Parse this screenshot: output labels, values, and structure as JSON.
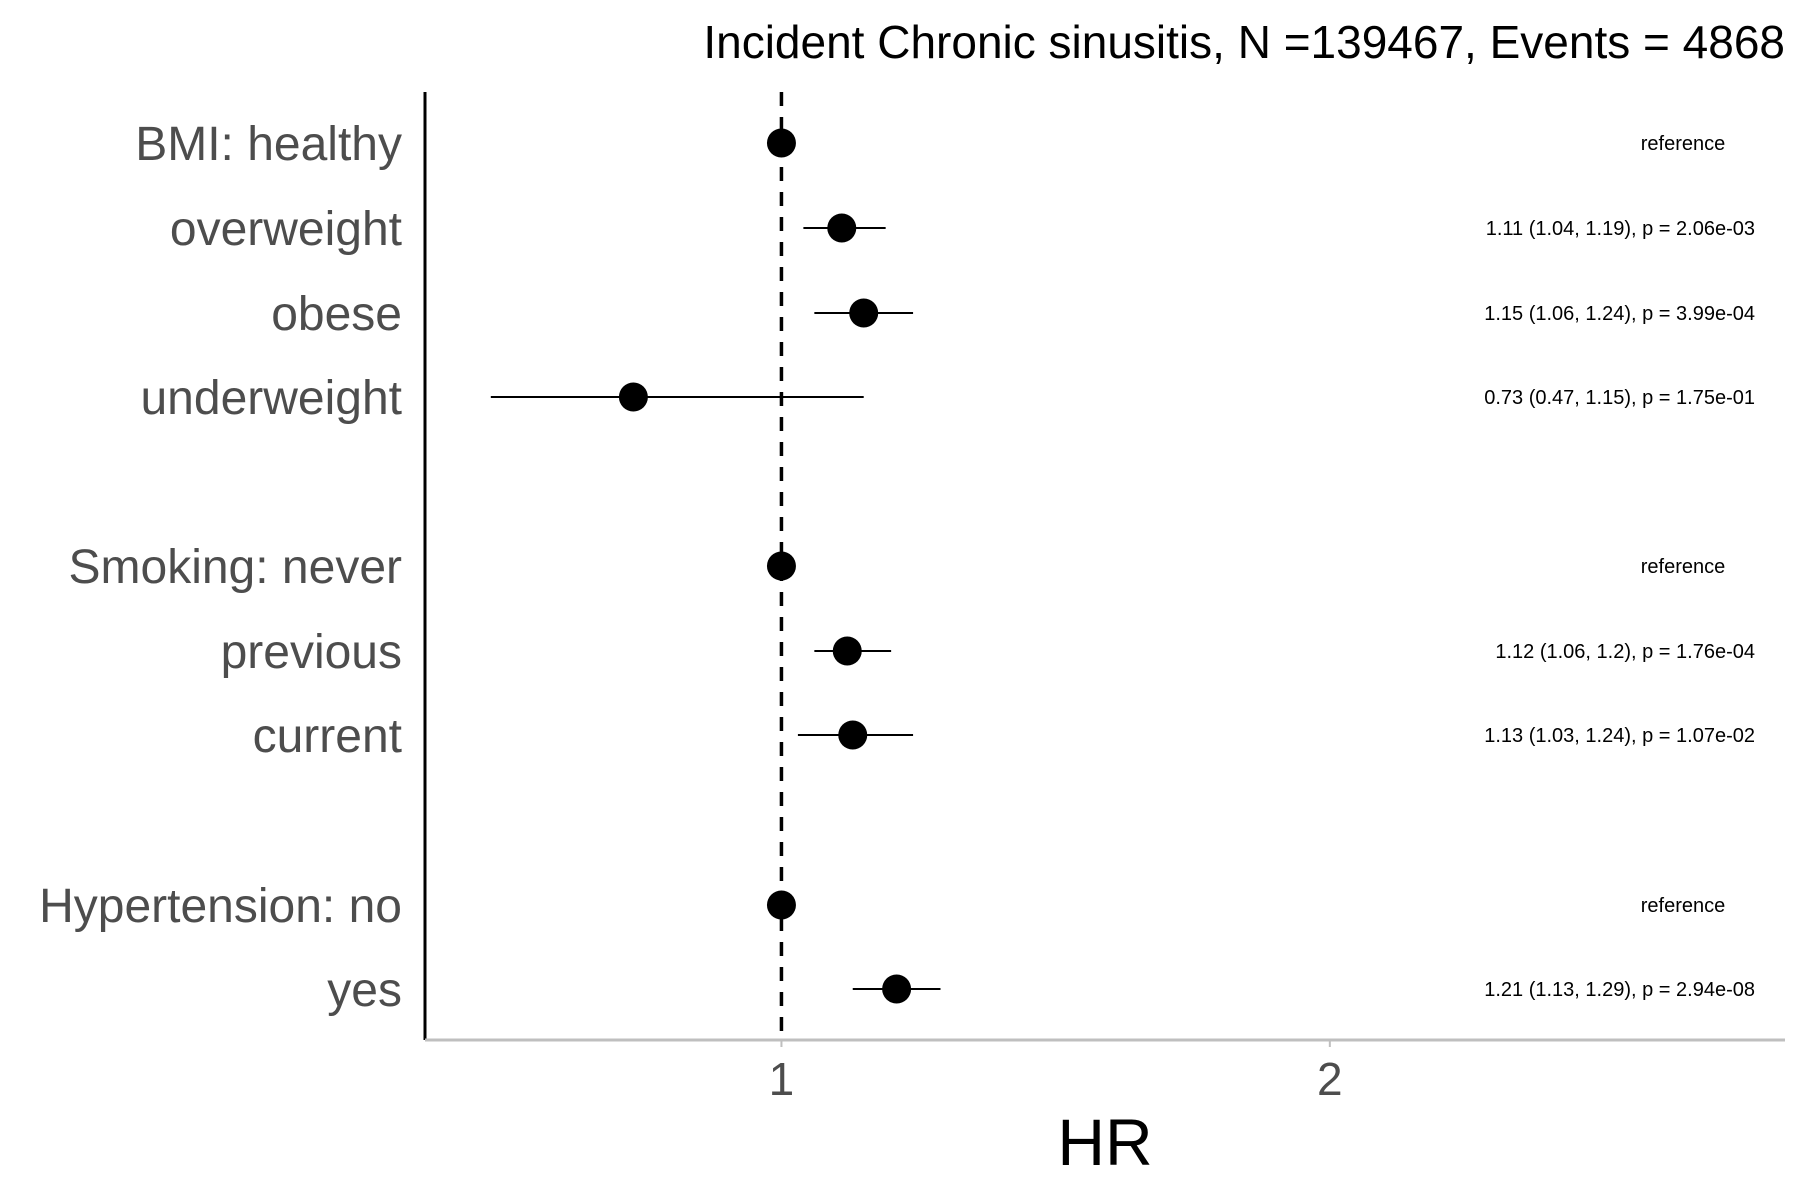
{
  "chart_data": {
    "type": "scatter",
    "title": "Incident Chronic sinusitis, N =139467, Events = 4868",
    "xlabel": "HR",
    "ylabel": "",
    "x_ticks": [
      1,
      2
    ],
    "xlim": [
      0.35,
      2.83
    ],
    "reference_line": 1,
    "rows": [
      {
        "label": "BMI: healthy",
        "hr": 1.0,
        "lower": null,
        "upper": null,
        "annotation": "reference"
      },
      {
        "label": "overweight",
        "hr": 1.11,
        "lower": 1.04,
        "upper": 1.19,
        "annotation": "1.11 (1.04, 1.19), p = 2.06e-03"
      },
      {
        "label": "obese",
        "hr": 1.15,
        "lower": 1.06,
        "upper": 1.24,
        "annotation": "1.15 (1.06, 1.24), p = 3.99e-04"
      },
      {
        "label": "underweight",
        "hr": 0.73,
        "lower": 0.47,
        "upper": 1.15,
        "annotation": "0.73 (0.47, 1.15), p = 1.75e-01"
      },
      {
        "label": "Smoking: never",
        "hr": 1.0,
        "lower": null,
        "upper": null,
        "annotation": "reference"
      },
      {
        "label": "previous",
        "hr": 1.12,
        "lower": 1.06,
        "upper": 1.2,
        "annotation": "1.12 (1.06, 1.2), p = 1.76e-04"
      },
      {
        "label": "current",
        "hr": 1.13,
        "lower": 1.03,
        "upper": 1.24,
        "annotation": "1.13 (1.03, 1.24), p = 1.07e-02"
      },
      {
        "label": "Hypertension: no",
        "hr": 1.0,
        "lower": null,
        "upper": null,
        "annotation": "reference"
      },
      {
        "label": "yes",
        "hr": 1.21,
        "lower": 1.13,
        "upper": 1.29,
        "annotation": "1.21 (1.13, 1.29), p = 2.94e-08"
      }
    ],
    "colors": {
      "point": "#000000",
      "label": "#4d4d4d",
      "axis": "#bfbfbf"
    }
  }
}
